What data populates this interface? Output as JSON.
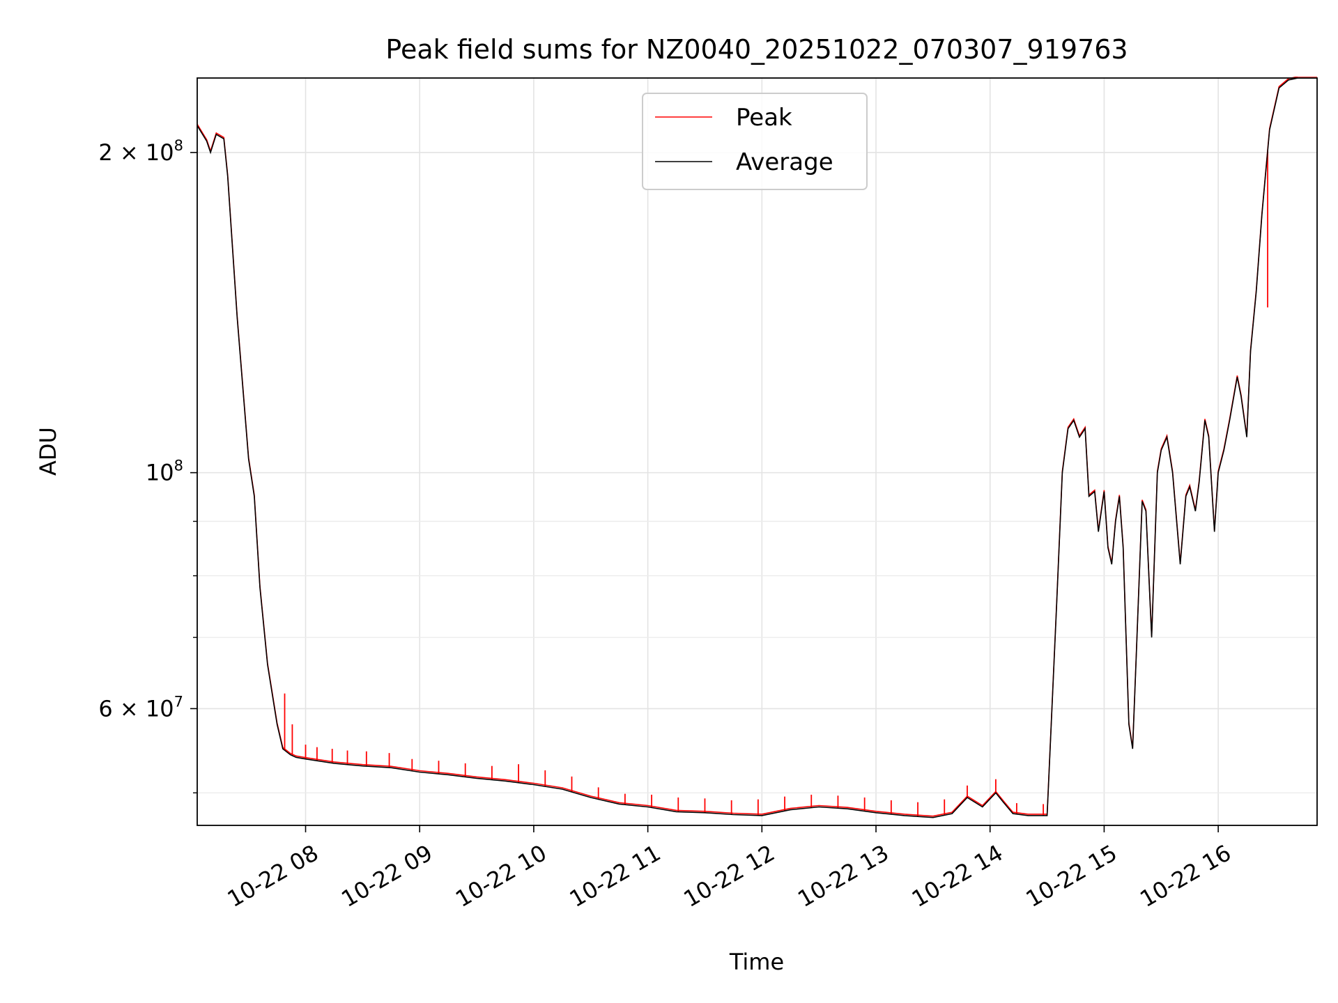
{
  "chart_data": {
    "type": "line",
    "title": "Peak field sums for NZ0040_20251022_070307_919763",
    "xlabel": "Time",
    "ylabel": "ADU",
    "yscale": "log",
    "xlim": [
      "2025-10-22 07:03",
      "2025-10-22 16:52"
    ],
    "ylim": [
      46600000,
      235000000
    ],
    "grid": true,
    "legend": {
      "position": "top-center",
      "entries": [
        "Peak",
        "Average"
      ]
    },
    "x_ticks": [
      "10-22 08",
      "10-22 09",
      "10-22 10",
      "10-22 11",
      "10-22 12",
      "10-22 13",
      "10-22 14",
      "10-22 15",
      "10-22 16"
    ],
    "y_ticks": [
      {
        "value": 200000000,
        "base": "2 × 10",
        "exp": "8"
      },
      {
        "value": 100000000,
        "base": "10",
        "exp": "8"
      },
      {
        "value": 60000000,
        "base": "6 × 10",
        "exp": "7"
      }
    ],
    "y_minor_ticks": [
      50000000,
      70000000,
      80000000,
      90000000
    ],
    "series": [
      {
        "name": "Average",
        "color": "#000000",
        "x": [
          "2025-10-22 07:03",
          "2025-10-22 07:08",
          "2025-10-22 07:10",
          "2025-10-22 07:13",
          "2025-10-22 07:17",
          "2025-10-22 07:19",
          "2025-10-22 07:24",
          "2025-10-22 07:30",
          "2025-10-22 07:33",
          "2025-10-22 07:36",
          "2025-10-22 07:40",
          "2025-10-22 07:45",
          "2025-10-22 07:48",
          "2025-10-22 07:52",
          "2025-10-22 07:55",
          "2025-10-22 08:00",
          "2025-10-22 08:15",
          "2025-10-22 08:30",
          "2025-10-22 08:45",
          "2025-10-22 09:00",
          "2025-10-22 09:15",
          "2025-10-22 09:30",
          "2025-10-22 09:45",
          "2025-10-22 10:00",
          "2025-10-22 10:15",
          "2025-10-22 10:30",
          "2025-10-22 10:45",
          "2025-10-22 11:00",
          "2025-10-22 11:15",
          "2025-10-22 11:30",
          "2025-10-22 11:45",
          "2025-10-22 12:00",
          "2025-10-22 12:15",
          "2025-10-22 12:30",
          "2025-10-22 12:45",
          "2025-10-22 13:00",
          "2025-10-22 13:15",
          "2025-10-22 13:30",
          "2025-10-22 13:40",
          "2025-10-22 13:48",
          "2025-10-22 13:56",
          "2025-10-22 14:03",
          "2025-10-22 14:07",
          "2025-10-22 14:12",
          "2025-10-22 14:20",
          "2025-10-22 14:30",
          "2025-10-22 14:35",
          "2025-10-22 14:38",
          "2025-10-22 14:41",
          "2025-10-22 14:44",
          "2025-10-22 14:47",
          "2025-10-22 14:50",
          "2025-10-22 14:52",
          "2025-10-22 14:55",
          "2025-10-22 14:57",
          "2025-10-22 15:00",
          "2025-10-22 15:02",
          "2025-10-22 15:04",
          "2025-10-22 15:06",
          "2025-10-22 15:08",
          "2025-10-22 15:10",
          "2025-10-22 15:13",
          "2025-10-22 15:15",
          "2025-10-22 15:17",
          "2025-10-22 15:20",
          "2025-10-22 15:22",
          "2025-10-22 15:25",
          "2025-10-22 15:28",
          "2025-10-22 15:30",
          "2025-10-22 15:33",
          "2025-10-22 15:36",
          "2025-10-22 15:40",
          "2025-10-22 15:43",
          "2025-10-22 15:45",
          "2025-10-22 15:48",
          "2025-10-22 15:50",
          "2025-10-22 15:53",
          "2025-10-22 15:55",
          "2025-10-22 15:58",
          "2025-10-22 16:00",
          "2025-10-22 16:03",
          "2025-10-22 16:06",
          "2025-10-22 16:10",
          "2025-10-22 16:12",
          "2025-10-22 16:15",
          "2025-10-22 16:17",
          "2025-10-22 16:20",
          "2025-10-22 16:23",
          "2025-10-22 16:27",
          "2025-10-22 16:32",
          "2025-10-22 16:37",
          "2025-10-22 16:42",
          "2025-10-22 16:47",
          "2025-10-22 16:52"
        ],
        "values": [
          212000000,
          205000000,
          200000000,
          208000000,
          206000000,
          190000000,
          140000000,
          103000000,
          95000000,
          78000000,
          66000000,
          58000000,
          55000000,
          54300000,
          54000000,
          53800000,
          53300000,
          53000000,
          52800000,
          52300000,
          52000000,
          51600000,
          51300000,
          50900000,
          50400000,
          49500000,
          48800000,
          48500000,
          48000000,
          47900000,
          47700000,
          47600000,
          48200000,
          48500000,
          48300000,
          47900000,
          47600000,
          47400000,
          47800000,
          49500000,
          48500000,
          50000000,
          49000000,
          47800000,
          47600000,
          47600000,
          75000000,
          100000000,
          110000000,
          112000000,
          108000000,
          110000000,
          95000000,
          96000000,
          88000000,
          96000000,
          85000000,
          82000000,
          90000000,
          95000000,
          85000000,
          58000000,
          55000000,
          68000000,
          94000000,
          92000000,
          70000000,
          100000000,
          105000000,
          108000000,
          100000000,
          82000000,
          95000000,
          97000000,
          92000000,
          98000000,
          112000000,
          108000000,
          88000000,
          100000000,
          105000000,
          112000000,
          123000000,
          118000000,
          108000000,
          130000000,
          148000000,
          175000000,
          210000000,
          230000000,
          234000000,
          235000000,
          235000000,
          235000000
        ]
      },
      {
        "name": "Peak",
        "color": "#ff0000",
        "spikes": [
          {
            "x": "2025-10-22 07:49",
            "value": 62000000
          },
          {
            "x": "2025-10-22 07:53",
            "value": 58000000
          },
          {
            "x": "2025-10-22 08:00",
            "value": 55500000
          },
          {
            "x": "2025-10-22 08:06",
            "value": 55200000
          },
          {
            "x": "2025-10-22 08:14",
            "value": 55000000
          },
          {
            "x": "2025-10-22 08:22",
            "value": 54800000
          },
          {
            "x": "2025-10-22 08:32",
            "value": 54700000
          },
          {
            "x": "2025-10-22 08:44",
            "value": 54500000
          },
          {
            "x": "2025-10-22 08:56",
            "value": 53800000
          },
          {
            "x": "2025-10-22 09:10",
            "value": 53600000
          },
          {
            "x": "2025-10-22 09:24",
            "value": 53300000
          },
          {
            "x": "2025-10-22 09:38",
            "value": 53000000
          },
          {
            "x": "2025-10-22 09:52",
            "value": 53200000
          },
          {
            "x": "2025-10-22 10:06",
            "value": 52500000
          },
          {
            "x": "2025-10-22 10:20",
            "value": 51800000
          },
          {
            "x": "2025-10-22 10:34",
            "value": 50600000
          },
          {
            "x": "2025-10-22 10:48",
            "value": 49900000
          },
          {
            "x": "2025-10-22 11:02",
            "value": 49800000
          },
          {
            "x": "2025-10-22 11:16",
            "value": 49500000
          },
          {
            "x": "2025-10-22 11:30",
            "value": 49400000
          },
          {
            "x": "2025-10-22 11:44",
            "value": 49200000
          },
          {
            "x": "2025-10-22 11:58",
            "value": 49300000
          },
          {
            "x": "2025-10-22 12:12",
            "value": 49600000
          },
          {
            "x": "2025-10-22 12:26",
            "value": 49800000
          },
          {
            "x": "2025-10-22 12:40",
            "value": 49700000
          },
          {
            "x": "2025-10-22 12:54",
            "value": 49500000
          },
          {
            "x": "2025-10-22 13:08",
            "value": 49200000
          },
          {
            "x": "2025-10-22 13:22",
            "value": 49000000
          },
          {
            "x": "2025-10-22 13:36",
            "value": 49300000
          },
          {
            "x": "2025-10-22 13:48",
            "value": 50800000
          },
          {
            "x": "2025-10-22 14:03",
            "value": 51500000
          },
          {
            "x": "2025-10-22 14:14",
            "value": 48900000
          },
          {
            "x": "2025-10-22 14:28",
            "value": 48800000
          },
          {
            "x": "2025-10-22 16:26",
            "value": 143000000
          }
        ]
      }
    ]
  }
}
